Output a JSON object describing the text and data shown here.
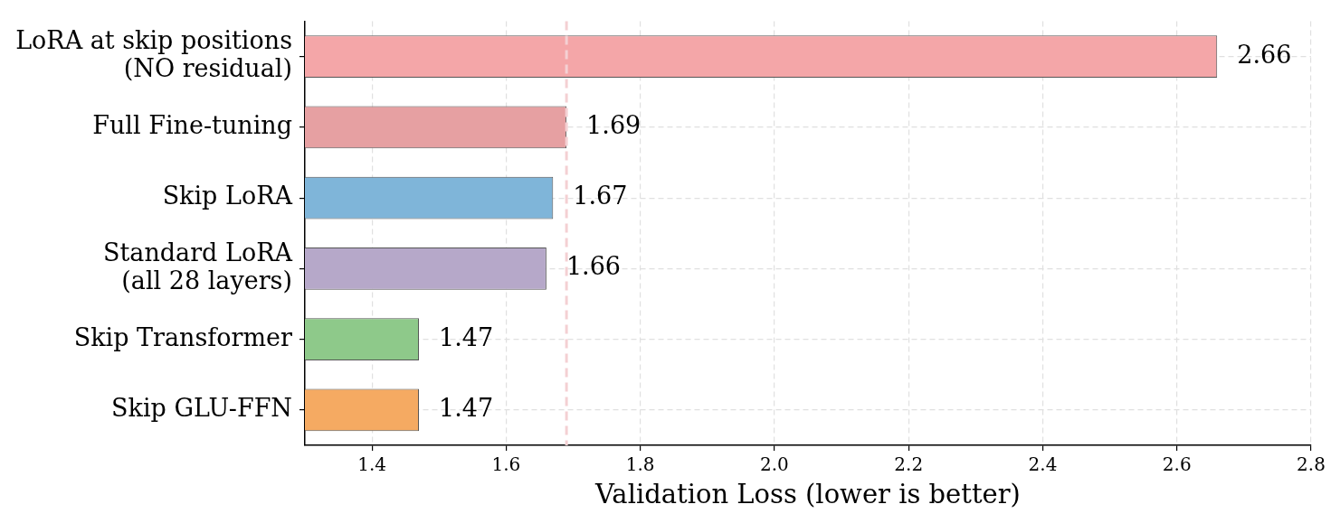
{
  "chart_data": {
    "type": "bar",
    "orientation": "horizontal",
    "categories": [
      "LoRA at skip positions\n(NO residual)",
      "Full Fine-tuning",
      "Skip LoRA",
      "Standard LoRA\n(all 28 layers)",
      "Skip Transformer",
      "Skip GLU-FFN"
    ],
    "values": [
      2.66,
      1.69,
      1.67,
      1.66,
      1.47,
      1.47
    ],
    "colors": [
      "#f4a6a8",
      "#e6a0a2",
      "#7fb5d9",
      "#b6a8c9",
      "#8ec98a",
      "#f5aa62"
    ],
    "xlabel": "Validation Loss (lower is better)",
    "xlim": [
      1.3,
      2.8
    ],
    "xticks": [
      1.4,
      1.6,
      1.8,
      {
        "value": 2,
        "label": "2.0"
      },
      2.2,
      2.4,
      2.6,
      2.8
    ],
    "ref_lines": [
      {
        "axis": "x",
        "value": 1.69,
        "color": "#f4d0d3",
        "line_style": "dashed"
      }
    ],
    "data_labels": true,
    "grid": true
  }
}
